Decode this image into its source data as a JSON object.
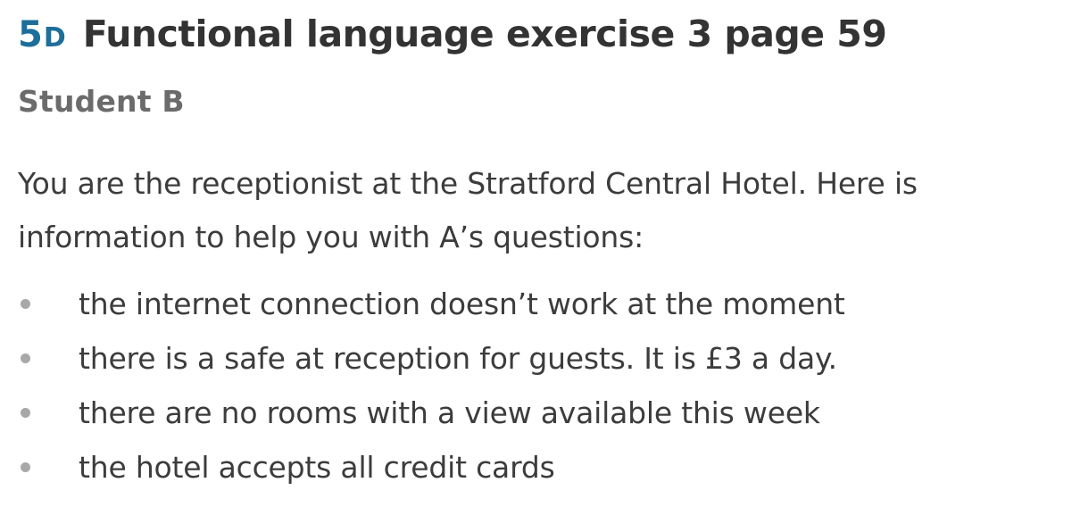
{
  "header": {
    "unit_number": "5",
    "unit_letter": "D",
    "title": "Functional language exercise 3 page 59"
  },
  "subheading": "Student B",
  "intro": "You are the receptionist at the Stratford Central Hotel. Here is information to help you with A’s questions:",
  "bullets": [
    "the internet connection doesn’t work at the moment",
    "there is a safe at reception for guests. It is £3 a day.",
    "there are no rooms with a view available this week",
    "the hotel accepts all credit cards"
  ],
  "colors": {
    "unit_accent": "#1d6e9a",
    "title": "#333333",
    "subheading": "#6b6b6b",
    "body_text": "#3c3c3c",
    "bullet": "#a8a8a8"
  }
}
